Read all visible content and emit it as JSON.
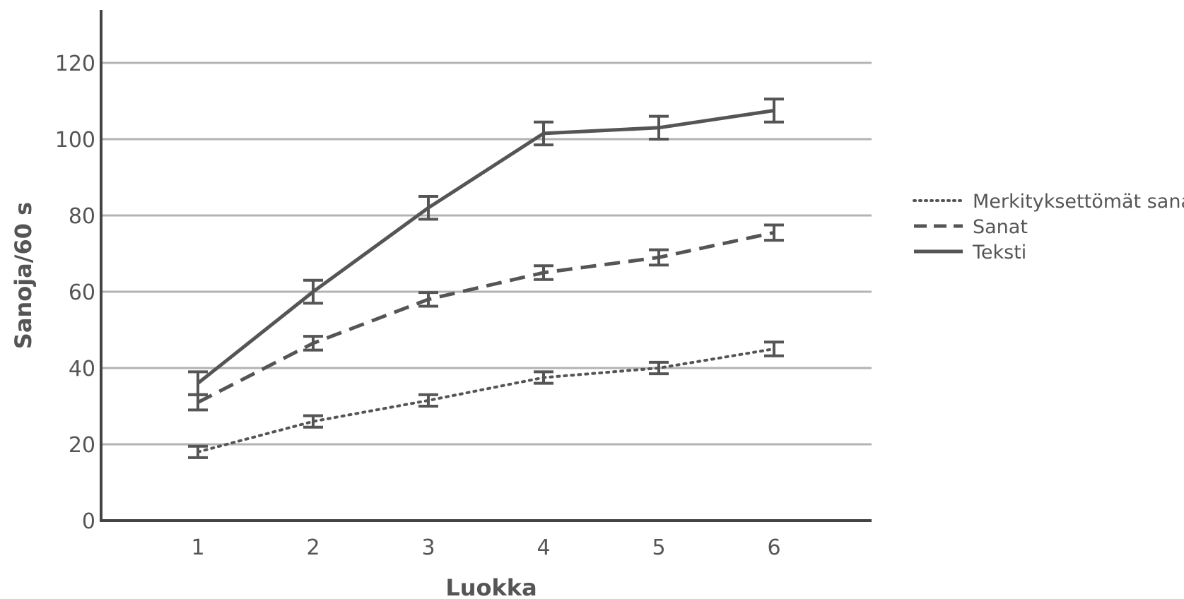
{
  "chart_data": {
    "type": "line",
    "xlabel": "Luokka",
    "ylabel": "Sanoja/60 s",
    "x": [
      1,
      2,
      3,
      4,
      5,
      6
    ],
    "xlim": [
      0,
      7
    ],
    "ylim": [
      0,
      130
    ],
    "y_ticks": [
      0,
      20,
      40,
      60,
      80,
      100,
      120
    ],
    "grid": true,
    "legend_position": "right",
    "series": [
      {
        "name": "Merkityksettömät sanat",
        "style": "dotted",
        "values": [
          18,
          26,
          31.5,
          37.5,
          40,
          45
        ],
        "errors": [
          1.5,
          1.5,
          1.5,
          1.5,
          1.5,
          1.8
        ]
      },
      {
        "name": "Sanat",
        "style": "dashed",
        "values": [
          31,
          46.5,
          58,
          65,
          69,
          75.5
        ],
        "errors": [
          2,
          1.8,
          1.8,
          1.8,
          2,
          2
        ]
      },
      {
        "name": "Teksti",
        "style": "solid",
        "values": [
          36,
          60,
          82,
          101.5,
          103,
          107.5
        ],
        "errors": [
          3,
          3,
          3,
          3,
          3,
          3
        ]
      }
    ],
    "colors": {
      "line": "#555555",
      "grid": "#b3b3b3",
      "axis": "#444444"
    }
  }
}
